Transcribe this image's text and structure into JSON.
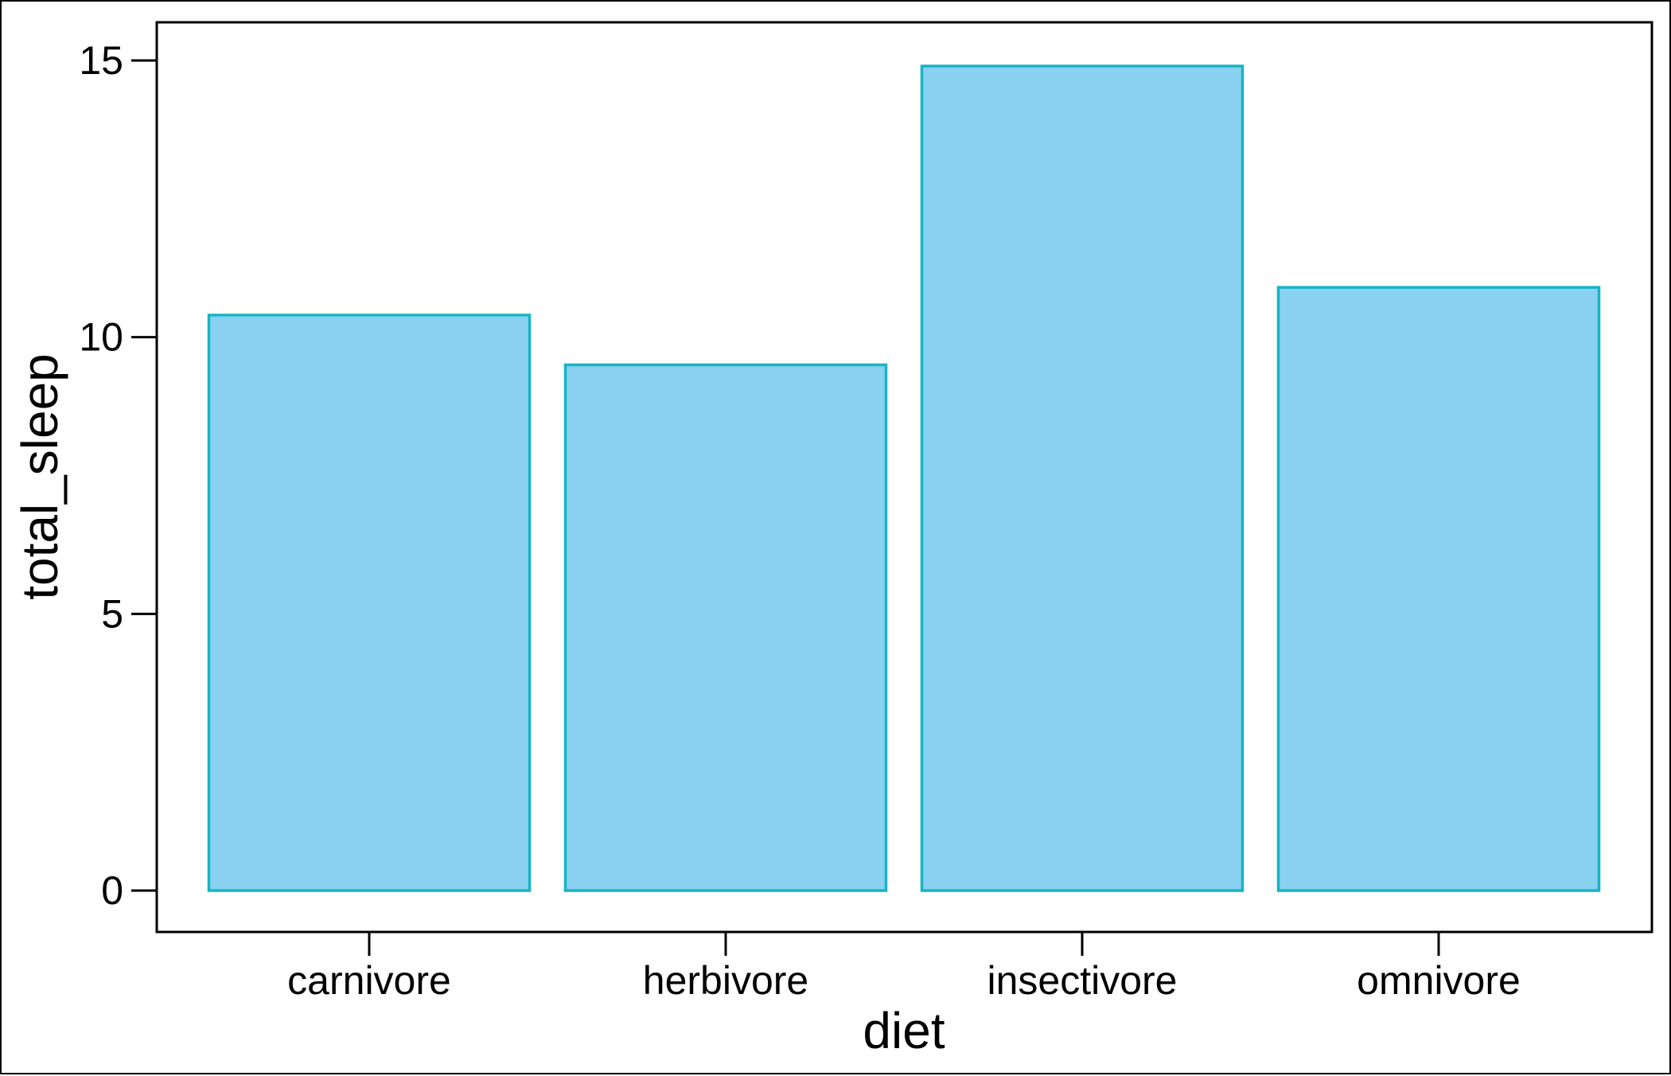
{
  "chart_data": {
    "type": "bar",
    "title": "",
    "xlabel": "diet",
    "ylabel": "total_sleep",
    "categories": [
      "carnivore",
      "herbivore",
      "insectivore",
      "omnivore"
    ],
    "values": [
      10.4,
      9.5,
      14.9,
      10.9
    ],
    "ylim": [
      -0.75,
      15.7
    ],
    "yticks": [
      0,
      5,
      10,
      15
    ],
    "ytick_labels": [
      "0",
      "5",
      "10",
      "15"
    ],
    "grid": false,
    "legend": "none",
    "colors": {
      "bar_fill": "#89d1f0",
      "bar_stroke": "#17b4c4",
      "axis": "#000000"
    }
  }
}
